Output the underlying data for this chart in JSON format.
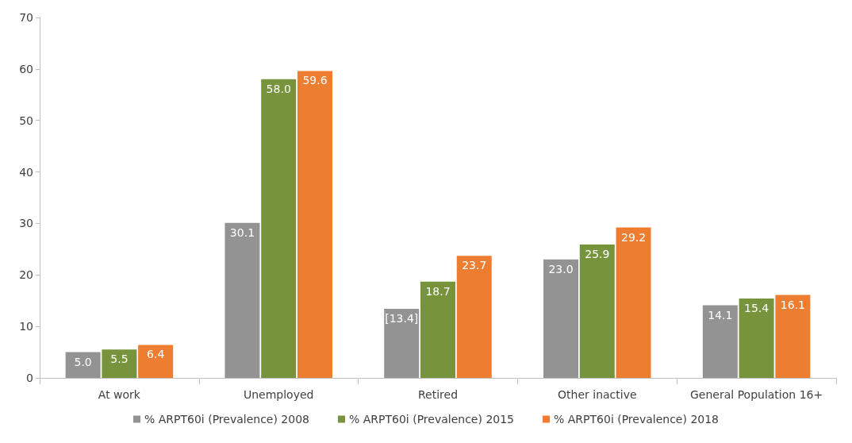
{
  "chart_data": {
    "type": "bar",
    "categories": [
      "At work",
      "Unemployed",
      "Retired",
      "Other inactive",
      "General Population 16+"
    ],
    "series": [
      {
        "name": "% ARPT60i (Prevalence) 2008",
        "color": "#939393",
        "values": [
          5.0,
          30.1,
          13.4,
          23.0,
          14.1
        ],
        "value_labels": [
          "5.0",
          "30.1",
          "[13.4]",
          "23.0",
          "14.1"
        ]
      },
      {
        "name": "% ARPT60i (Prevalence) 2015",
        "color": "#77933c",
        "values": [
          5.5,
          58.0,
          18.7,
          25.9,
          15.4
        ],
        "value_labels": [
          "5.5",
          "58.0",
          "18.7",
          "25.9",
          "15.4"
        ]
      },
      {
        "name": "% ARPT60i (Prevalence) 2018",
        "color": "#ed7d31",
        "values": [
          6.4,
          59.6,
          23.7,
          29.2,
          16.1
        ],
        "value_labels": [
          "6.4",
          "59.6",
          "23.7",
          "29.2",
          "16.1"
        ]
      }
    ],
    "ylim": [
      0,
      70
    ],
    "yticks": [
      0,
      10,
      20,
      30,
      40,
      50,
      60,
      70
    ],
    "grid": false,
    "legend": "bottom"
  }
}
